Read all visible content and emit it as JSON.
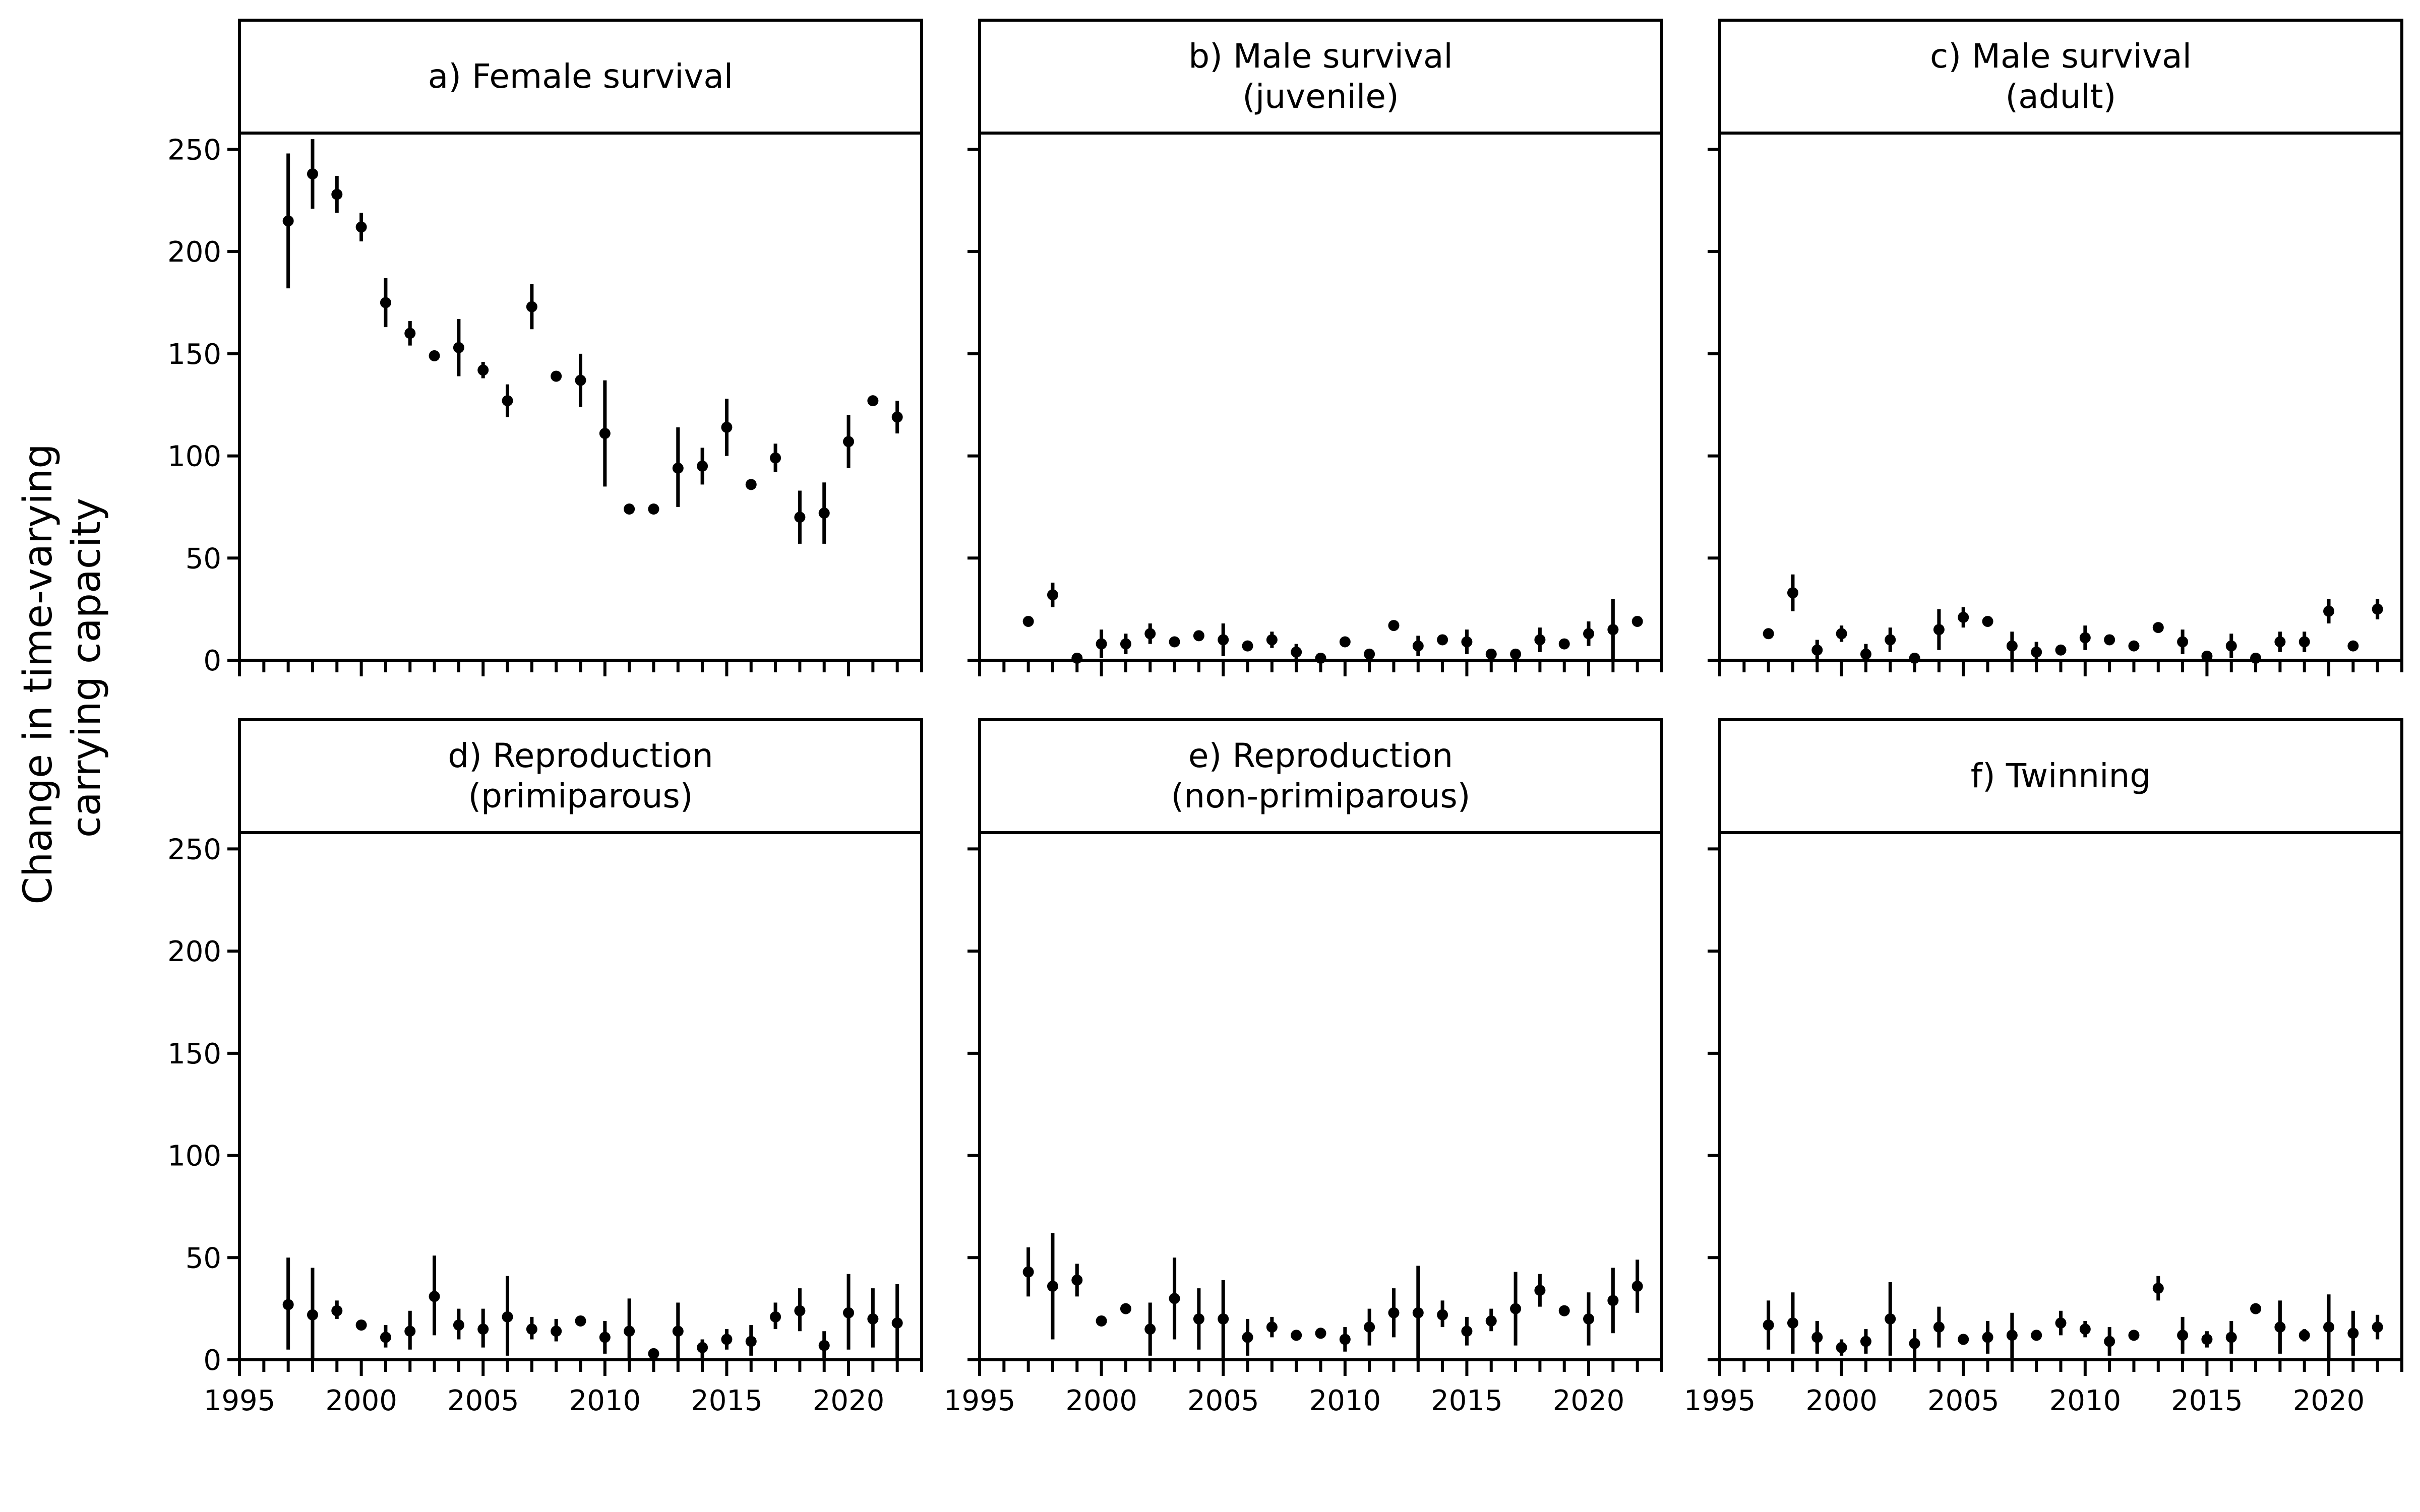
{
  "figure": {
    "ylabel_line1": "Change in time-varying",
    "ylabel_line2": "carrying capacity"
  },
  "chart_data": {
    "type": "scatter",
    "style": "points with error bars, faceted 2x3 panels, shared axes",
    "xlim": [
      1995,
      2023
    ],
    "ylim": [
      0,
      258
    ],
    "x_ticks": [
      1995,
      2000,
      2005,
      2010,
      2015,
      2020
    ],
    "x_minor_step": 1,
    "y_ticks": [
      0,
      50,
      100,
      150,
      200,
      250
    ],
    "grid": false,
    "panels": [
      {
        "title_lines": [
          "a) Female survival"
        ],
        "x": [
          1997,
          1998,
          1999,
          2000,
          2001,
          2002,
          2003,
          2004,
          2005,
          2006,
          2007,
          2008,
          2009,
          2010,
          2011,
          2012,
          2013,
          2014,
          2015,
          2016,
          2017,
          2018,
          2019,
          2020,
          2021,
          2022
        ],
        "y": [
          215,
          238,
          228,
          212,
          175,
          160,
          149,
          153,
          142,
          127,
          173,
          139,
          137,
          111,
          74,
          74,
          94,
          95,
          114,
          86,
          99,
          70,
          72,
          107,
          127,
          119
        ],
        "lower": [
          182,
          221,
          219,
          205,
          163,
          154,
          149,
          139,
          138,
          119,
          162,
          139,
          124,
          85,
          74,
          74,
          75,
          86,
          100,
          86,
          92,
          57,
          57,
          94,
          127,
          111
        ],
        "upper": [
          248,
          255,
          237,
          219,
          187,
          166,
          149,
          167,
          146,
          135,
          184,
          139,
          150,
          137,
          74,
          74,
          114,
          104,
          128,
          86,
          106,
          83,
          87,
          120,
          127,
          127
        ]
      },
      {
        "title_lines": [
          "b) Male survival",
          "(juvenile)"
        ],
        "x": [
          1997,
          1998,
          1999,
          2000,
          2001,
          2002,
          2003,
          2004,
          2005,
          2006,
          2007,
          2008,
          2009,
          2010,
          2011,
          2012,
          2013,
          2014,
          2015,
          2016,
          2017,
          2018,
          2019,
          2020,
          2021,
          2022
        ],
        "y": [
          19,
          32,
          1,
          8,
          8,
          13,
          9,
          12,
          10,
          7,
          10,
          4,
          1,
          9,
          3,
          17,
          7,
          10,
          9,
          3,
          3,
          10,
          8,
          13,
          15,
          19
        ],
        "lower": [
          19,
          26,
          1,
          1,
          3,
          8,
          9,
          12,
          2,
          7,
          6,
          0,
          1,
          9,
          3,
          17,
          2,
          10,
          3,
          3,
          3,
          4,
          8,
          7,
          0,
          19
        ],
        "upper": [
          19,
          38,
          1,
          15,
          13,
          18,
          9,
          12,
          18,
          7,
          14,
          8,
          1,
          9,
          3,
          17,
          12,
          10,
          15,
          3,
          3,
          16,
          8,
          19,
          30,
          19
        ]
      },
      {
        "title_lines": [
          "c) Male survival",
          "(adult)"
        ],
        "x": [
          1997,
          1998,
          1999,
          2000,
          2001,
          2002,
          2003,
          2004,
          2005,
          2006,
          2007,
          2008,
          2009,
          2010,
          2011,
          2012,
          2013,
          2014,
          2015,
          2016,
          2017,
          2018,
          2019,
          2020,
          2021,
          2022
        ],
        "y": [
          13,
          33,
          5,
          13,
          3,
          10,
          1,
          15,
          21,
          19,
          7,
          4,
          5,
          11,
          10,
          7,
          16,
          9,
          2,
          7,
          1,
          9,
          9,
          24,
          7,
          25
        ],
        "lower": [
          13,
          24,
          0,
          9,
          0,
          4,
          1,
          5,
          16,
          19,
          0,
          0,
          5,
          5,
          10,
          7,
          16,
          3,
          2,
          1,
          1,
          4,
          4,
          18,
          7,
          20
        ],
        "upper": [
          13,
          42,
          10,
          17,
          8,
          16,
          1,
          25,
          26,
          19,
          14,
          9,
          5,
          17,
          10,
          7,
          16,
          15,
          2,
          13,
          1,
          14,
          14,
          30,
          7,
          30
        ]
      },
      {
        "title_lines": [
          "d) Reproduction",
          "(primiparous)"
        ],
        "x": [
          1997,
          1998,
          1999,
          2000,
          2001,
          2002,
          2003,
          2004,
          2005,
          2006,
          2007,
          2008,
          2009,
          2010,
          2011,
          2012,
          2013,
          2014,
          2015,
          2016,
          2017,
          2018,
          2019,
          2020,
          2021,
          2022
        ],
        "y": [
          27,
          22,
          24,
          17,
          11,
          14,
          31,
          17,
          15,
          21,
          15,
          14,
          19,
          11,
          14,
          3,
          14,
          6,
          10,
          9,
          21,
          24,
          7,
          23,
          20,
          18
        ],
        "lower": [
          5,
          0,
          20,
          17,
          6,
          5,
          12,
          10,
          6,
          2,
          10,
          9,
          19,
          3,
          0,
          3,
          0,
          1,
          5,
          2,
          15,
          14,
          1,
          5,
          6,
          0
        ],
        "upper": [
          50,
          45,
          29,
          17,
          17,
          24,
          51,
          25,
          25,
          41,
          21,
          20,
          19,
          19,
          30,
          3,
          28,
          10,
          15,
          17,
          28,
          35,
          14,
          42,
          35,
          37
        ]
      },
      {
        "title_lines": [
          "e) Reproduction",
          "(non-primiparous)"
        ],
        "x": [
          1997,
          1998,
          1999,
          2000,
          2001,
          2002,
          2003,
          2004,
          2005,
          2006,
          2007,
          2008,
          2009,
          2010,
          2011,
          2012,
          2013,
          2014,
          2015,
          2016,
          2017,
          2018,
          2019,
          2020,
          2021,
          2022
        ],
        "y": [
          43,
          36,
          39,
          19,
          25,
          15,
          30,
          20,
          20,
          11,
          16,
          12,
          13,
          10,
          16,
          23,
          23,
          22,
          14,
          19,
          25,
          34,
          24,
          20,
          29,
          36
        ],
        "lower": [
          31,
          10,
          31,
          19,
          25,
          2,
          10,
          5,
          1,
          2,
          11,
          12,
          13,
          4,
          7,
          11,
          0,
          16,
          7,
          14,
          7,
          26,
          24,
          7,
          13,
          23
        ],
        "upper": [
          55,
          62,
          47,
          19,
          25,
          28,
          50,
          35,
          39,
          20,
          21,
          12,
          13,
          16,
          25,
          35,
          46,
          29,
          21,
          25,
          43,
          42,
          24,
          33,
          45,
          49
        ]
      },
      {
        "title_lines": [
          "f) Twinning"
        ],
        "x": [
          1997,
          1998,
          1999,
          2000,
          2001,
          2002,
          2003,
          2004,
          2005,
          2006,
          2007,
          2008,
          2009,
          2010,
          2011,
          2012,
          2013,
          2014,
          2015,
          2016,
          2017,
          2018,
          2019,
          2020,
          2021,
          2022
        ],
        "y": [
          17,
          18,
          11,
          6,
          9,
          20,
          8,
          16,
          10,
          11,
          12,
          12,
          18,
          15,
          9,
          12,
          35,
          12,
          10,
          11,
          25,
          16,
          12,
          16,
          13,
          16
        ],
        "lower": [
          5,
          3,
          3,
          2,
          3,
          2,
          1,
          6,
          10,
          3,
          1,
          12,
          12,
          11,
          2,
          12,
          29,
          3,
          6,
          3,
          25,
          3,
          9,
          0,
          2,
          10
        ],
        "upper": [
          29,
          33,
          19,
          10,
          15,
          38,
          15,
          26,
          10,
          19,
          23,
          12,
          24,
          19,
          16,
          12,
          41,
          21,
          14,
          19,
          25,
          29,
          15,
          32,
          24,
          22
        ]
      }
    ]
  }
}
